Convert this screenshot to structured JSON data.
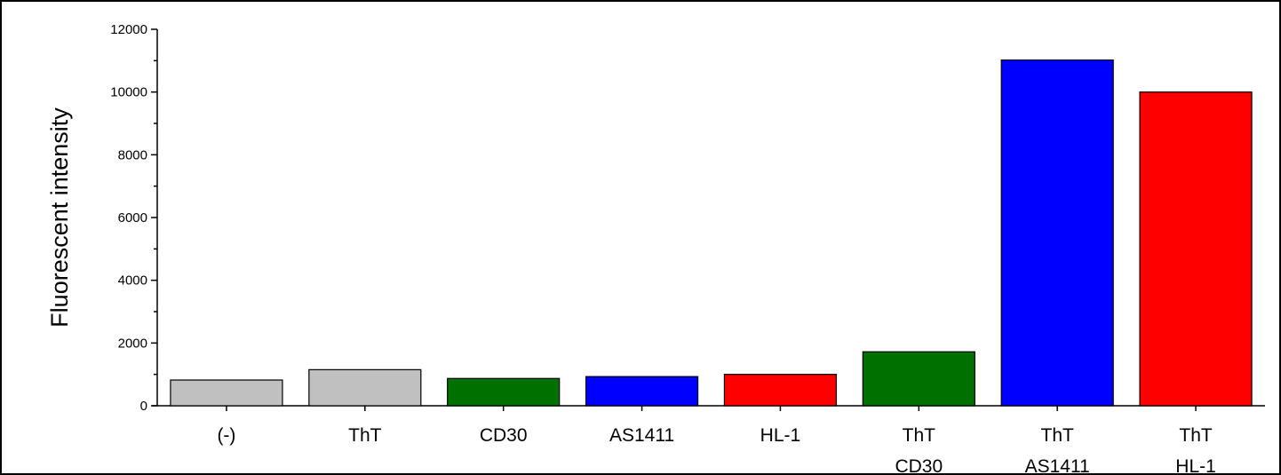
{
  "chart_data": {
    "type": "bar",
    "title": "",
    "xlabel": "",
    "ylabel": "Fluorescent intensity",
    "ylim": [
      0,
      12000
    ],
    "y_ticks": [
      0,
      2000,
      4000,
      6000,
      8000,
      10000,
      12000
    ],
    "grid": false,
    "categories": [
      [
        "(-)"
      ],
      [
        "ThT"
      ],
      [
        "CD30"
      ],
      [
        "AS1411"
      ],
      [
        "HL-1"
      ],
      [
        "ThT",
        "CD30"
      ],
      [
        "ThT",
        "AS1411"
      ],
      [
        "ThT",
        "HL-1"
      ]
    ],
    "values": [
      820,
      1150,
      870,
      930,
      1000,
      1720,
      11020,
      10000
    ],
    "colors": [
      "#c0c0c0",
      "#c0c0c0",
      "#007000",
      "#0000ff",
      "#ff0000",
      "#007000",
      "#0000ff",
      "#ff0000"
    ]
  }
}
